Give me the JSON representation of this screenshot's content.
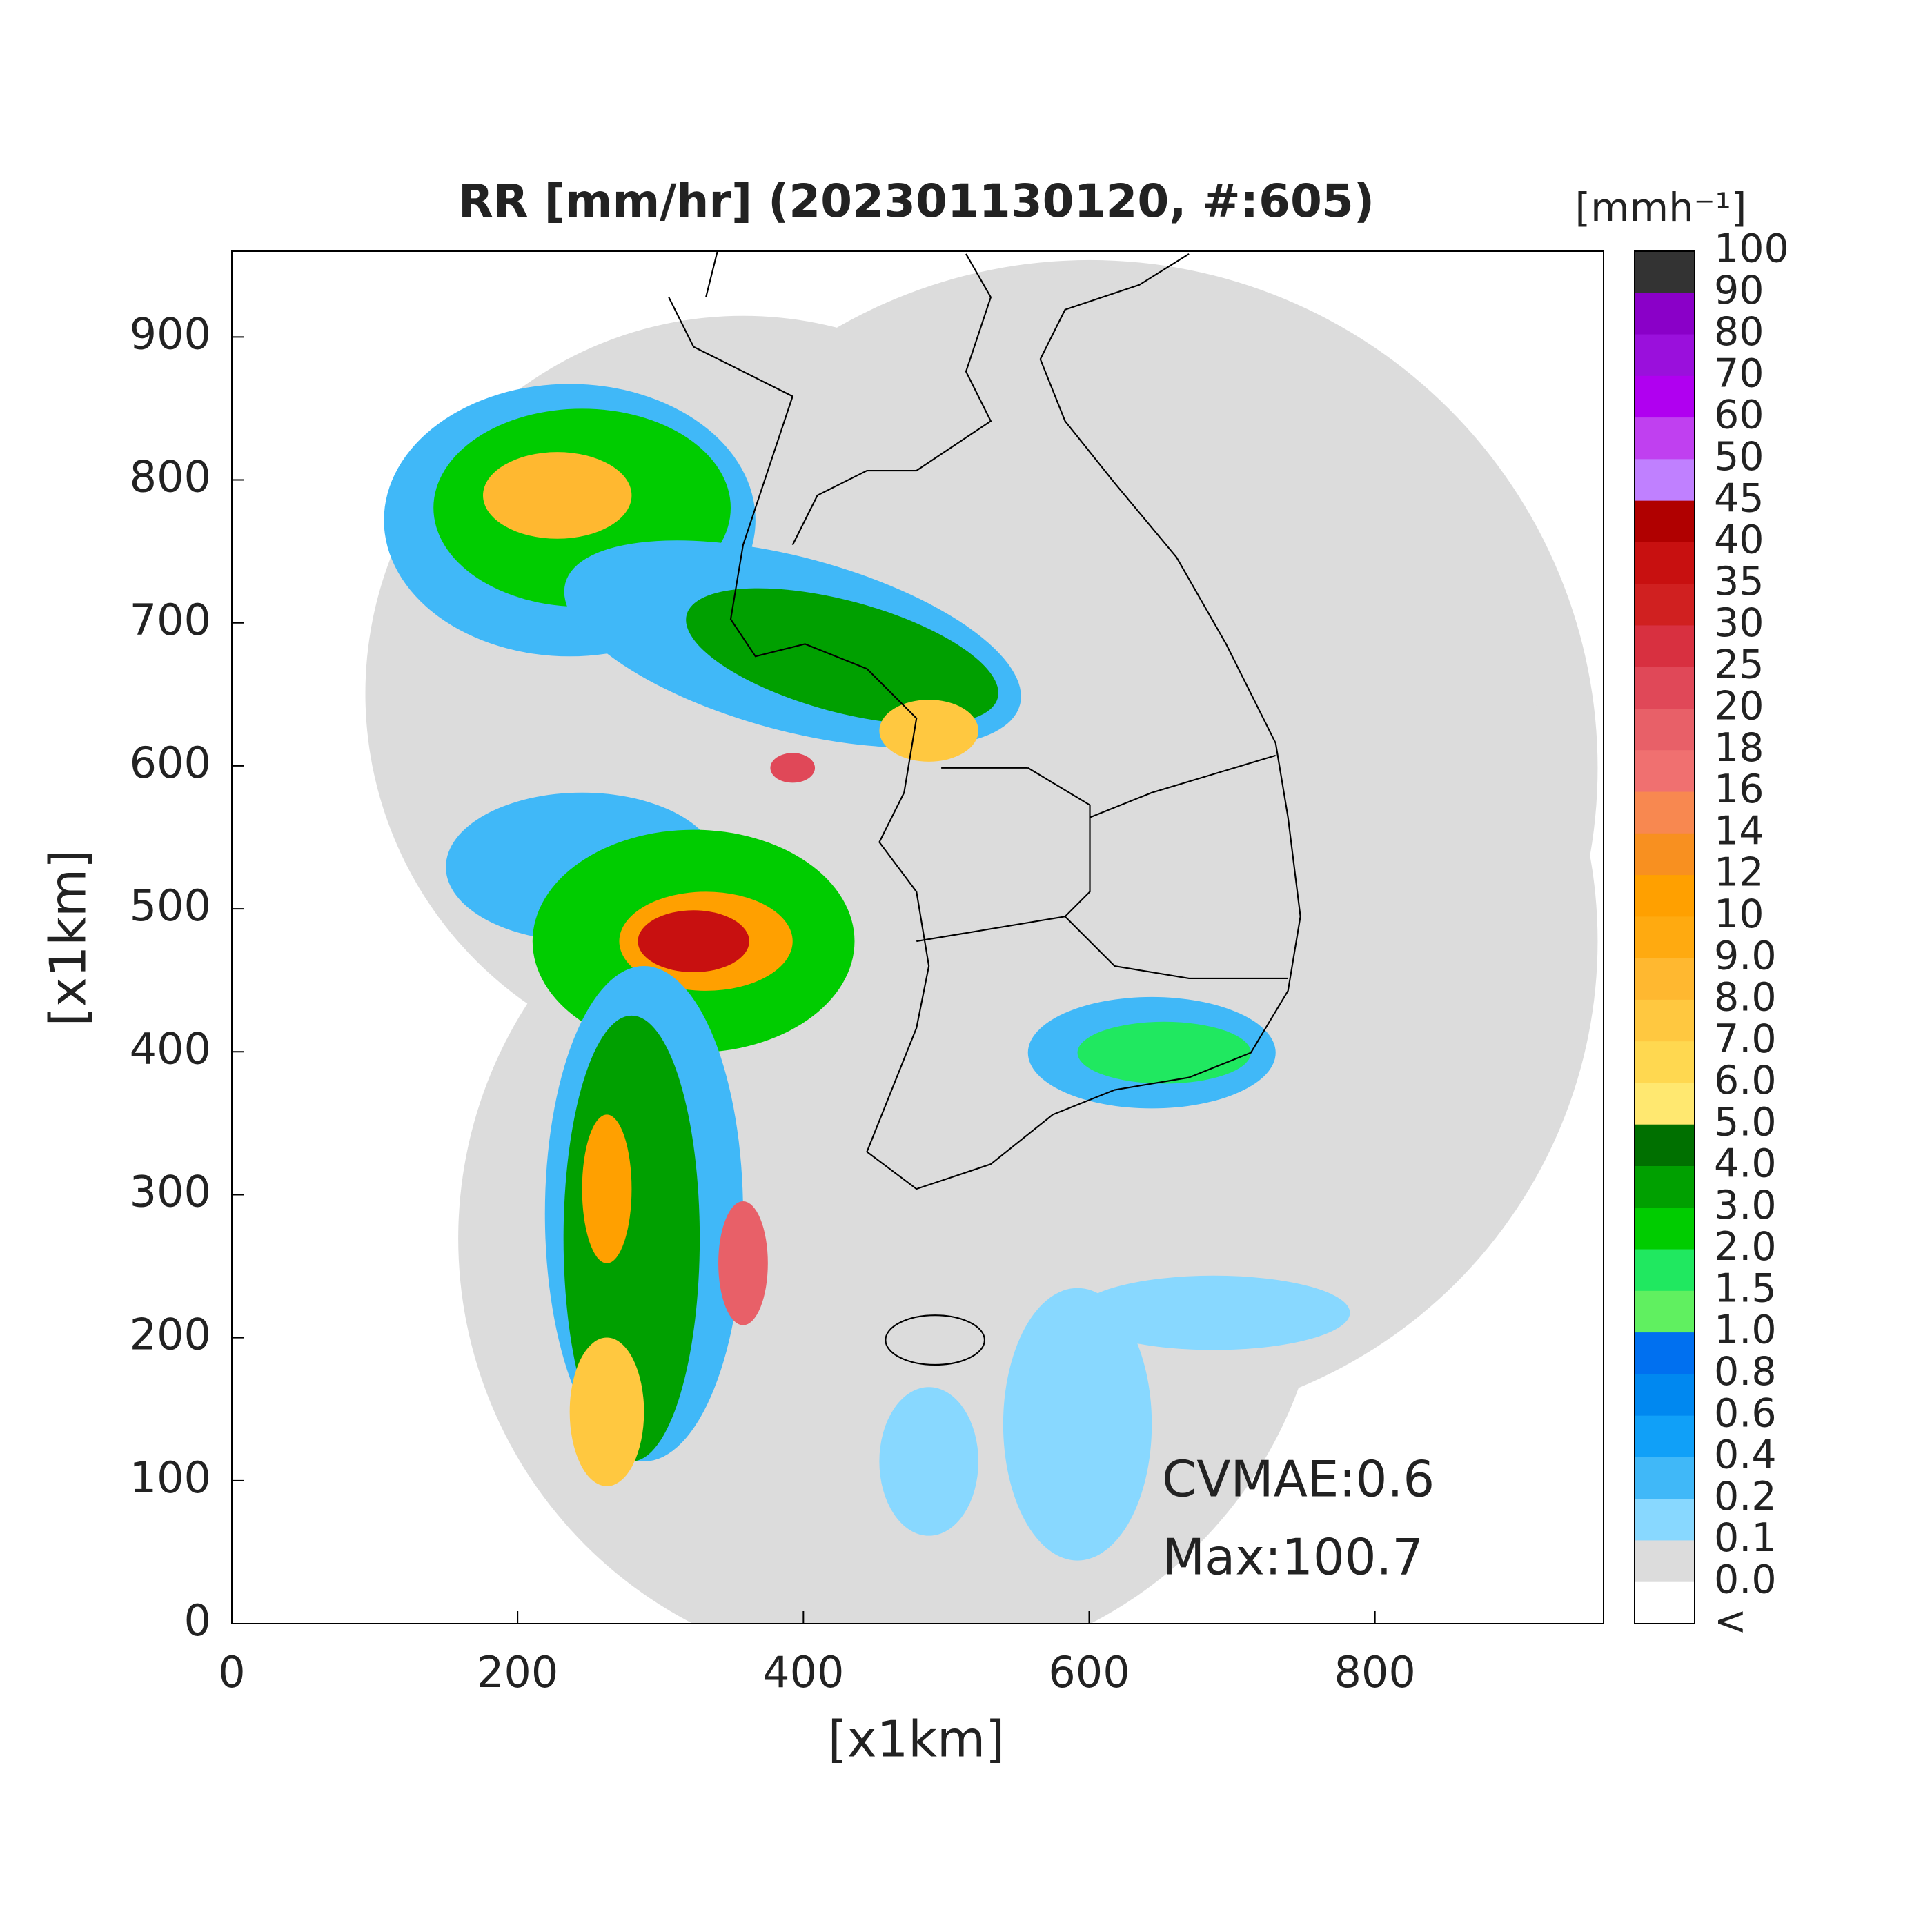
{
  "chart_data": {
    "type": "heatmap",
    "title": "RR [mm/hr] (202301130120, #:605)",
    "xlabel": "[x1km]",
    "ylabel": "[x1km]",
    "xlim": [
      0,
      960
    ],
    "ylim": [
      0,
      960
    ],
    "xticks": [
      0,
      200,
      400,
      600,
      800
    ],
    "yticks": [
      0,
      100,
      200,
      300,
      400,
      500,
      600,
      700,
      800,
      900
    ],
    "annotations": [
      "CVMAE:0.6",
      "Max:100.7"
    ],
    "colorbar": {
      "unit": "[mmh⁻¹]",
      "labels": [
        "100",
        "90",
        "80",
        "70",
        "60",
        "50",
        "45",
        "40",
        "35",
        "30",
        "25",
        "20",
        "18",
        "16",
        "14",
        "12",
        "10",
        "9.0",
        "8.0",
        "7.0",
        "6.0",
        "5.0",
        "4.0",
        "3.0",
        "2.0",
        "1.5",
        "1.0",
        "0.8",
        "0.6",
        "0.4",
        "0.2",
        "0.1",
        "0.0",
        "<"
      ],
      "colors": [
        "#333333",
        "#8a00c8",
        "#9a10dc",
        "#b000f0",
        "#c040f0",
        "#c080ff",
        "#b00000",
        "#c81010",
        "#d02020",
        "#d83040",
        "#e04858",
        "#e86068",
        "#f07070",
        "#f88850",
        "#f89020",
        "#ffa000",
        "#ffaa10",
        "#ffb830",
        "#ffc840",
        "#ffd850",
        "#ffe870",
        "#007000",
        "#00a000",
        "#00cc00",
        "#20e860",
        "#60f060",
        "#0070f0",
        "#0088f0",
        "#10a0f8",
        "#40b8f8",
        "#88d8ff",
        "#dcdcdc",
        "#ffffff"
      ]
    }
  }
}
